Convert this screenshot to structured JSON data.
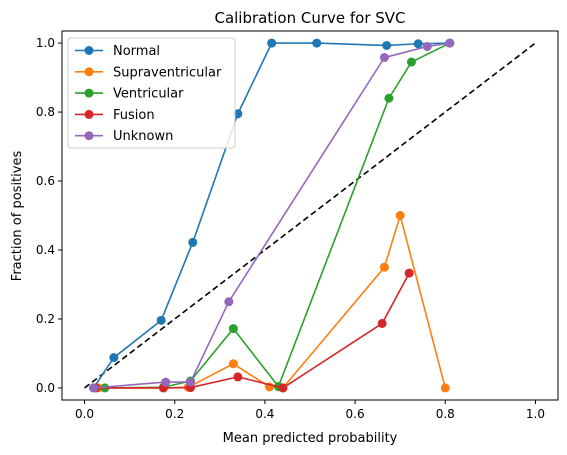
{
  "chart_data": {
    "type": "line",
    "title": "Calibration Curve for SVC",
    "xlabel": "Mean predicted probability",
    "ylabel": "Fraction of positives",
    "xlim": [
      -0.05,
      1.05
    ],
    "ylim": [
      -0.035,
      1.035
    ],
    "x_ticks": [
      "0.0",
      "0.2",
      "0.4",
      "0.6",
      "0.8",
      "1.0"
    ],
    "y_ticks": [
      "0.0",
      "0.2",
      "0.4",
      "0.6",
      "0.8",
      "1.0"
    ],
    "grid": false,
    "legend_position": "upper-left",
    "reference_line": {
      "style": "dashed",
      "color": "#000000",
      "points": [
        [
          0,
          0
        ],
        [
          1,
          1
        ]
      ]
    },
    "series": [
      {
        "name": "Normal",
        "color": "#1f77b4",
        "points": [
          [
            0.02,
            0.0
          ],
          [
            0.065,
            0.088
          ],
          [
            0.17,
            0.196
          ],
          [
            0.24,
            0.422
          ],
          [
            0.34,
            0.795
          ],
          [
            0.415,
            1.0
          ],
          [
            0.515,
            1.0
          ],
          [
            0.67,
            0.993
          ],
          [
            0.74,
            0.998
          ],
          [
            0.81,
            1.0
          ]
        ]
      },
      {
        "name": "Supraventricular",
        "color": "#ff7f0e",
        "points": [
          [
            0.03,
            0.0
          ],
          [
            0.175,
            0.0
          ],
          [
            0.23,
            0.002
          ],
          [
            0.33,
            0.07
          ],
          [
            0.41,
            0.003
          ],
          [
            0.44,
            0.0
          ],
          [
            0.665,
            0.35
          ],
          [
            0.7,
            0.5
          ],
          [
            0.8,
            0.0
          ]
        ]
      },
      {
        "name": "Ventricular",
        "color": "#2ca02c",
        "points": [
          [
            0.045,
            0.0
          ],
          [
            0.175,
            0.002
          ],
          [
            0.235,
            0.02
          ],
          [
            0.33,
            0.172
          ],
          [
            0.43,
            0.004
          ],
          [
            0.675,
            0.84
          ],
          [
            0.725,
            0.945
          ],
          [
            0.81,
            1.0
          ]
        ]
      },
      {
        "name": "Fusion",
        "color": "#d62728",
        "points": [
          [
            0.025,
            0.0
          ],
          [
            0.175,
            0.0
          ],
          [
            0.235,
            0.001
          ],
          [
            0.34,
            0.032
          ],
          [
            0.44,
            0.0
          ],
          [
            0.66,
            0.187
          ],
          [
            0.72,
            0.333
          ]
        ]
      },
      {
        "name": "Unknown",
        "color": "#9467bd",
        "points": [
          [
            0.02,
            0.0
          ],
          [
            0.18,
            0.017
          ],
          [
            0.235,
            0.017
          ],
          [
            0.32,
            0.25
          ],
          [
            0.665,
            0.958
          ],
          [
            0.76,
            0.99
          ],
          [
            0.81,
            1.0
          ]
        ]
      }
    ]
  }
}
